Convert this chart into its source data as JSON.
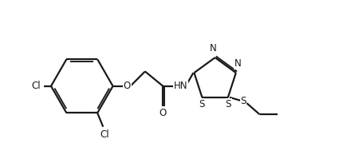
{
  "bg": "#ffffff",
  "lc": "#1a1a1a",
  "lw": 1.6,
  "fs": 8.5,
  "figsize": [
    4.3,
    1.89
  ],
  "dpi": 100,
  "xlim": [
    0.0,
    4.3
  ],
  "ylim": [
    0.0,
    1.89
  ]
}
